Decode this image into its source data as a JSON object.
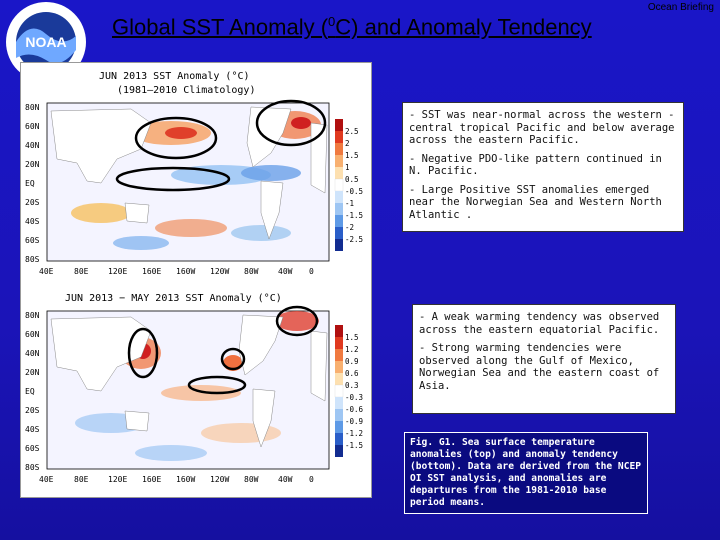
{
  "header": {
    "corner_note": "Ocean Briefing",
    "title_prefix": "Global SST Anomaly (",
    "title_sup": "0",
    "title_suffix": "C) and Anomaly Tendency",
    "logo_text": "NOAA",
    "logo_ring_text": "NATIONAL OCEANIC AND ATMOSPHERIC ADMINISTRATION"
  },
  "top_map": {
    "title_line1": "JUN 2013  SST Anomaly (°C)",
    "title_line2": "(1981–2010 Climatology)",
    "lat_labels": [
      "80N",
      "60N",
      "40N",
      "20N",
      "EQ",
      "20S",
      "40S",
      "60S",
      "80S"
    ],
    "lon_labels": [
      "40E",
      "80E",
      "120E",
      "160E",
      "160W",
      "120W",
      "80W",
      "40W",
      "0"
    ],
    "colorbar_labels": [
      "2.5",
      "2",
      "1.5",
      "1",
      "0.5",
      "-0.5",
      "-1",
      "-1.5",
      "-2",
      "-2.5"
    ]
  },
  "bottom_map": {
    "title": "JUN 2013 − MAY 2013 SST Anomaly (°C)",
    "lat_labels": [
      "80N",
      "60N",
      "40N",
      "20N",
      "EQ",
      "20S",
      "40S",
      "60S",
      "80S"
    ],
    "lon_labels": [
      "40E",
      "80E",
      "120E",
      "160E",
      "160W",
      "120W",
      "80W",
      "40W",
      "0"
    ],
    "colorbar_labels": [
      "1.5",
      "1.2",
      "0.9",
      "0.6",
      "0.3",
      "-0.3",
      "-0.6",
      "-0.9",
      "-1.2",
      "-1.5"
    ]
  },
  "notes_top": [
    "- SST was near-normal across the western -central tropical Pacific and below average across the eastern Pacific.",
    "- Negative PDO-like pattern continued in N. Pacific.",
    "- Large Positive SST anomalies emerged near the Norwegian Sea and Western North Atlantic ."
  ],
  "notes_bottom": [
    "- A weak warming tendency was observed across the eastern equatorial Pacific.",
    "- Strong warming tendencies were observed along the Gulf of Mexico, Norwegian Sea and the eastern coast of Asia."
  ],
  "caption": "Fig. G1. Sea surface temperature anomalies (top) and anomaly tendency (bottom). Data are derived from the NCEP OI SST analysis, and anomalies are departures from the 1981-2010 base period means.",
  "colors": {
    "background": "#1a16c8",
    "title_text": "#000000",
    "caption_bg": "#0a0a80"
  }
}
